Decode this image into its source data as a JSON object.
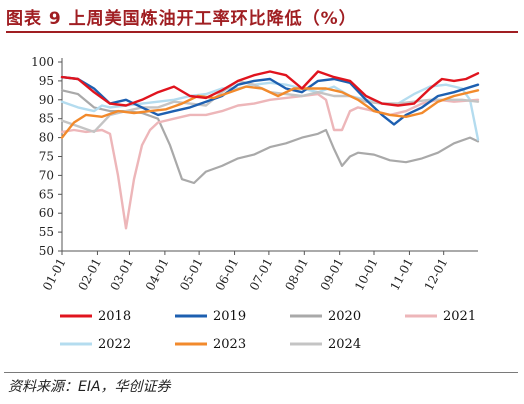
{
  "page": {
    "title": "图表 9  上周美国炼油开工率环比降低（%）",
    "source": "资料来源：EIA，华创证券"
  },
  "chart_data": {
    "type": "line",
    "ylim": [
      50,
      100
    ],
    "yticks": [
      50,
      55,
      60,
      65,
      70,
      75,
      80,
      85,
      90,
      95,
      100
    ],
    "xlim": [
      1,
      53
    ],
    "xticks": [
      {
        "label": "01-01",
        "week": 1
      },
      {
        "label": "02-01",
        "week": 5.43
      },
      {
        "label": "03-01",
        "week": 9.43
      },
      {
        "label": "04-01",
        "week": 13.86
      },
      {
        "label": "05-01",
        "week": 18.14
      },
      {
        "label": "06-01",
        "week": 22.57
      },
      {
        "label": "07-01",
        "week": 26.86
      },
      {
        "label": "08-01",
        "week": 31.29
      },
      {
        "label": "09-01",
        "week": 35.71
      },
      {
        "label": "10-01",
        "week": 40
      },
      {
        "label": "11-01",
        "week": 44.43
      },
      {
        "label": "12-01",
        "week": 48.71
      }
    ],
    "legend_position": "bottom",
    "series": [
      {
        "name": "2018",
        "color": "#e0141e",
        "width": 2.4,
        "x": [
          1,
          3,
          5,
          7,
          9,
          11,
          13,
          15,
          17,
          19,
          21,
          23,
          25,
          27,
          29,
          31,
          33,
          35,
          37,
          39,
          41,
          43,
          45,
          47,
          48.5,
          50,
          51.5,
          53
        ],
        "values": [
          96,
          95.5,
          92,
          89,
          88.5,
          90,
          92,
          93.5,
          91,
          90.5,
          92.5,
          95,
          96.5,
          97.5,
          96.5,
          93,
          97.5,
          96,
          95,
          91,
          89,
          88.5,
          89,
          93,
          95.5,
          95,
          95.5,
          97
        ]
      },
      {
        "name": "2019",
        "color": "#1d5fb0",
        "width": 2.4,
        "x": [
          1,
          3,
          5,
          7,
          9,
          11,
          13,
          15,
          17,
          19,
          21,
          23,
          25,
          27,
          29,
          31,
          33,
          35,
          37,
          39,
          41,
          42.5,
          44,
          46,
          48,
          50,
          53
        ],
        "values": [
          96,
          95.5,
          93,
          89,
          90,
          88,
          86,
          87,
          88,
          89.5,
          91,
          94,
          95,
          95.5,
          93,
          92,
          95,
          95.5,
          94.5,
          90,
          86,
          83.5,
          86,
          88,
          91,
          92,
          94
        ]
      },
      {
        "name": "2020",
        "color": "#a9a9a9",
        "width": 2.2,
        "x": [
          1,
          3,
          5,
          7,
          9,
          11,
          13,
          14.5,
          16,
          17.5,
          19,
          21,
          23,
          25,
          27,
          29,
          31,
          33,
          34,
          35,
          36,
          37,
          38,
          40,
          42,
          44,
          46,
          48,
          50,
          52,
          53
        ],
        "values": [
          92.5,
          91.5,
          88,
          87,
          87,
          86.5,
          85,
          78,
          69,
          68,
          71,
          72.5,
          74.5,
          75.5,
          77.5,
          78.5,
          80,
          81,
          82,
          77,
          72.5,
          75,
          76,
          75.5,
          74,
          73.5,
          74.5,
          76,
          78.5,
          80,
          79
        ]
      },
      {
        "name": "2021",
        "color": "#edb6b9",
        "width": 2.4,
        "x": [
          1,
          2.5,
          4,
          6,
          7,
          8,
          9,
          10,
          11,
          12,
          13,
          15,
          17,
          19,
          21,
          23,
          25,
          27,
          29,
          31,
          33,
          34,
          35,
          36,
          37,
          38,
          40,
          42,
          44,
          46,
          48,
          50,
          53
        ],
        "values": [
          81.5,
          82,
          81.5,
          82,
          81,
          70,
          56,
          69,
          78,
          82,
          84,
          85,
          86,
          86,
          87,
          88.5,
          89,
          90,
          90.5,
          91,
          91.5,
          90,
          82,
          82,
          87,
          88,
          87,
          86,
          87,
          89,
          90,
          89.5,
          90
        ]
      },
      {
        "name": "2022",
        "color": "#b4dcef",
        "width": 2.4,
        "x": [
          1,
          3,
          5,
          6,
          7,
          9,
          11,
          13,
          15,
          17,
          19,
          21,
          23,
          25,
          27,
          29,
          31,
          33,
          35,
          37,
          39,
          41,
          43,
          45,
          47,
          49,
          51,
          52,
          53
        ],
        "values": [
          89.5,
          88,
          87,
          88.5,
          88,
          88.5,
          89,
          89.5,
          90,
          91,
          91.5,
          93,
          93,
          94,
          94.5,
          94,
          93,
          92,
          93.5,
          91,
          90,
          89,
          89,
          91.5,
          93.5,
          94,
          93,
          90,
          79.5
        ]
      },
      {
        "name": "2023",
        "color": "#f28a2c",
        "width": 2.4,
        "x": [
          1,
          2.5,
          4,
          6,
          8,
          10,
          12,
          14,
          16,
          18,
          20,
          22,
          24,
          26,
          28,
          30,
          32,
          34,
          36,
          38,
          40,
          42,
          44,
          46,
          48,
          50,
          53
        ],
        "values": [
          80,
          84,
          86,
          85.5,
          87,
          86.5,
          87,
          87.5,
          89,
          91,
          90.5,
          92,
          93.5,
          93,
          91,
          93,
          93,
          93,
          92,
          90,
          87,
          86,
          85.5,
          86.5,
          89.5,
          91,
          92.5
        ]
      },
      {
        "name": "2024",
        "color": "#c4c4c4",
        "width": 2.4,
        "x": [
          1,
          3,
          5,
          7,
          9,
          11,
          13,
          15,
          17,
          19,
          21,
          23,
          25,
          27,
          29,
          31,
          33,
          35,
          37,
          39,
          41,
          43,
          45,
          47,
          49,
          51,
          53
        ],
        "values": [
          84.5,
          83,
          81.5,
          86,
          87,
          88,
          88,
          89.5,
          89,
          88.5,
          92,
          95,
          94,
          92,
          91.5,
          91,
          92,
          91,
          91,
          89.5,
          89,
          89,
          89.5,
          90,
          90,
          90,
          89.5
        ]
      }
    ]
  }
}
